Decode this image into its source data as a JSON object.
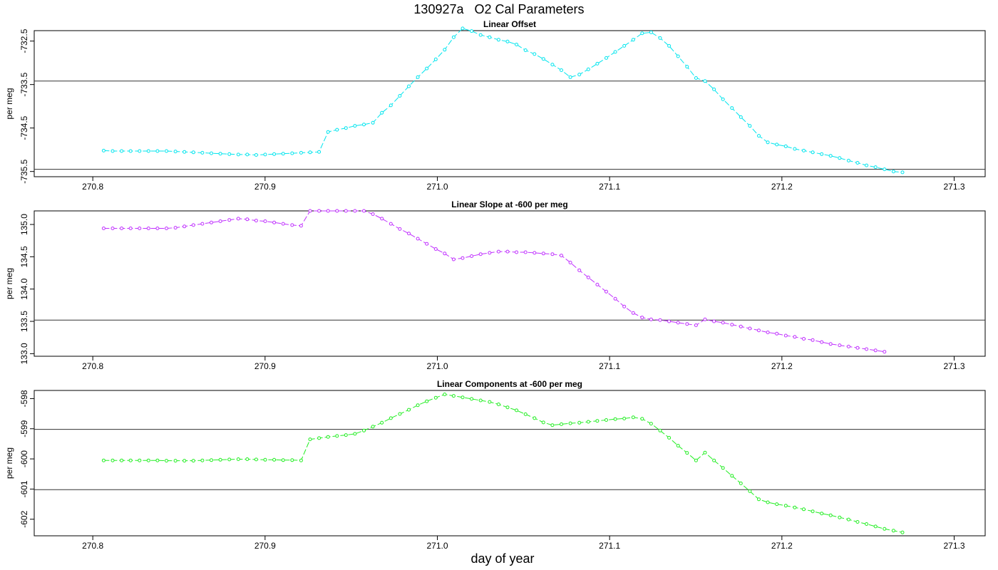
{
  "page": {
    "title": "130927a   O2 Cal Parameters",
    "xlabel": "day of year"
  },
  "chart_data": [
    {
      "type": "line",
      "title": "Linear Offset",
      "ylabel": "per meg",
      "xlim": [
        270.766,
        271.318
      ],
      "ylim": [
        -735.62,
        -732.26
      ],
      "xticks": [
        "270.8",
        "270.9",
        "271.0",
        "271.1",
        "271.2",
        "271.3"
      ],
      "yticks": [
        "-732.5",
        "-733.5",
        "-734.5",
        "-735.5"
      ],
      "hlines": [
        -733.42,
        -735.45
      ],
      "color": "#00e5ee",
      "x_start": 270.8063,
      "x_step": 0.00521,
      "values": [
        -735.02,
        -735.03,
        -735.03,
        -735.03,
        -735.03,
        -735.03,
        -735.03,
        -735.03,
        -735.04,
        -735.05,
        -735.06,
        -735.07,
        -735.08,
        -735.09,
        -735.1,
        -735.11,
        -735.11,
        -735.12,
        -735.11,
        -735.1,
        -735.09,
        -735.08,
        -735.07,
        -735.06,
        -735.05,
        -734.59,
        -734.54,
        -734.5,
        -734.45,
        -734.42,
        -734.38,
        -734.15,
        -733.98,
        -733.76,
        -733.54,
        -733.33,
        -733.13,
        -732.92,
        -732.7,
        -732.41,
        -732.21,
        -732.27,
        -732.36,
        -732.41,
        -732.47,
        -732.51,
        -732.58,
        -732.71,
        -732.8,
        -732.91,
        -733.04,
        -733.17,
        -733.33,
        -733.27,
        -733.15,
        -733.02,
        -732.89,
        -732.75,
        -732.61,
        -732.47,
        -732.32,
        -732.3,
        -732.43,
        -732.61,
        -732.85,
        -733.09,
        -733.35,
        -733.42,
        -733.61,
        -733.84,
        -734.04,
        -734.25,
        -734.45,
        -734.68,
        -734.83,
        -734.88,
        -734.92,
        -734.98,
        -735.02,
        -735.06,
        -735.1,
        -735.14,
        -735.19,
        -735.25,
        -735.3,
        -735.36,
        -735.4,
        -735.45,
        -735.5,
        -735.52
      ]
    },
    {
      "type": "line",
      "title": "Linear Slope at -600 per meg",
      "ylabel": "per meg",
      "xlim": [
        270.766,
        271.318
      ],
      "ylim": [
        132.96,
        135.21
      ],
      "xticks": [
        "270.8",
        "270.9",
        "271.0",
        "271.1",
        "271.2",
        "271.3"
      ],
      "yticks": [
        "135.0",
        "134.5",
        "134.0",
        "133.5",
        "133.0"
      ],
      "hlines": [
        133.52
      ],
      "color": "#c030ff",
      "x_start": 270.8063,
      "x_step": 0.00521,
      "values": [
        134.94,
        134.94,
        134.94,
        134.94,
        134.94,
        134.94,
        134.94,
        134.94,
        134.95,
        134.97,
        134.99,
        135.01,
        135.03,
        135.05,
        135.07,
        135.09,
        135.08,
        135.06,
        135.05,
        135.03,
        135.01,
        134.99,
        134.98,
        135.21,
        135.21,
        135.21,
        135.21,
        135.21,
        135.21,
        135.21,
        135.16,
        135.09,
        135.01,
        134.93,
        134.86,
        134.78,
        134.7,
        134.62,
        134.55,
        134.46,
        134.48,
        134.51,
        134.54,
        134.56,
        134.58,
        134.58,
        134.57,
        134.57,
        134.56,
        134.55,
        134.54,
        134.52,
        134.41,
        134.29,
        134.18,
        134.07,
        133.96,
        133.85,
        133.73,
        133.63,
        133.56,
        133.53,
        133.52,
        133.5,
        133.48,
        133.46,
        133.44,
        133.53,
        133.5,
        133.48,
        133.45,
        133.42,
        133.39,
        133.36,
        133.33,
        133.31,
        133.28,
        133.26,
        133.23,
        133.21,
        133.18,
        133.15,
        133.13,
        133.11,
        133.09,
        133.07,
        133.05,
        133.03
      ]
    },
    {
      "type": "line",
      "title": "Linear Components at -600 per meg",
      "ylabel": "per meg",
      "xlim": [
        270.766,
        271.318
      ],
      "ylim": [
        -602.55,
        -597.73
      ],
      "xticks": [
        "270.8",
        "270.9",
        "271.0",
        "271.1",
        "271.2",
        "271.3"
      ],
      "yticks": [
        "-598",
        "-599",
        "-600",
        "-601",
        "-602"
      ],
      "hlines": [
        -599.02,
        -601.02
      ],
      "color": "#22ee22",
      "x_start": 270.8063,
      "x_step": 0.00521,
      "values": [
        -600.05,
        -600.05,
        -600.05,
        -600.05,
        -600.05,
        -600.05,
        -600.05,
        -600.06,
        -600.06,
        -600.06,
        -600.06,
        -600.05,
        -600.04,
        -600.03,
        -600.02,
        -600.01,
        -600.01,
        -600.02,
        -600.03,
        -600.03,
        -600.04,
        -600.04,
        -600.05,
        -599.35,
        -599.31,
        -599.27,
        -599.24,
        -599.21,
        -599.17,
        -599.06,
        -598.93,
        -598.8,
        -598.65,
        -598.51,
        -598.37,
        -598.22,
        -598.09,
        -597.97,
        -597.86,
        -597.91,
        -597.96,
        -598.01,
        -598.06,
        -598.11,
        -598.19,
        -598.29,
        -598.39,
        -598.52,
        -598.65,
        -598.79,
        -598.88,
        -598.85,
        -598.82,
        -598.8,
        -598.77,
        -598.74,
        -598.71,
        -598.68,
        -598.66,
        -598.62,
        -598.67,
        -598.83,
        -599.06,
        -599.3,
        -599.56,
        -599.8,
        -600.05,
        -599.79,
        -600.05,
        -600.3,
        -600.56,
        -600.81,
        -601.07,
        -601.34,
        -601.44,
        -601.5,
        -601.55,
        -601.61,
        -601.67,
        -601.74,
        -601.81,
        -601.87,
        -601.94,
        -602.01,
        -602.09,
        -602.16,
        -602.24,
        -602.32,
        -602.38,
        -602.44
      ]
    }
  ]
}
